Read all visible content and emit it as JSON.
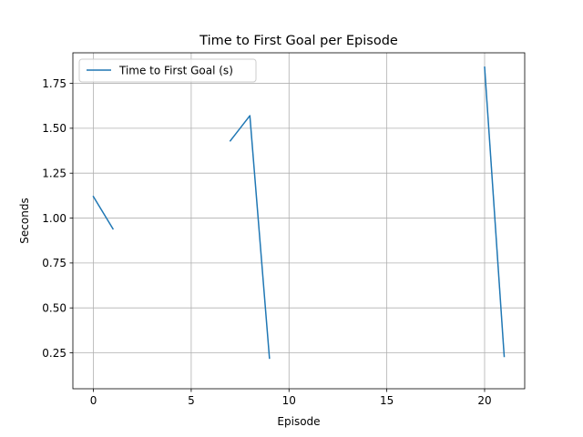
{
  "chart_data": {
    "type": "line",
    "title": "Time to First Goal per Episode",
    "xlabel": "Episode",
    "ylabel": "Seconds",
    "xlim": [
      -1.05,
      22.05
    ],
    "ylim": [
      0.05,
      1.92
    ],
    "xticks": [
      0,
      5,
      10,
      15,
      20
    ],
    "yticks": [
      0.25,
      0.5,
      0.75,
      1.0,
      1.25,
      1.5,
      1.75
    ],
    "xtick_labels": [
      "0",
      "5",
      "10",
      "15",
      "20"
    ],
    "ytick_labels": [
      "0.25",
      "0.50",
      "0.75",
      "1.00",
      "1.25",
      "1.50",
      "1.75"
    ],
    "grid": true,
    "legend_position": "upper-left",
    "color": "#1f77b4",
    "series": [
      {
        "name": "Time to First Goal (s)",
        "segments": [
          [
            [
              0,
              1.12
            ],
            [
              1,
              0.94
            ]
          ],
          [
            [
              7,
              1.43
            ],
            [
              8,
              1.57
            ],
            [
              9,
              0.22
            ]
          ],
          [
            [
              20,
              1.84
            ],
            [
              21,
              0.23
            ]
          ]
        ]
      }
    ]
  }
}
